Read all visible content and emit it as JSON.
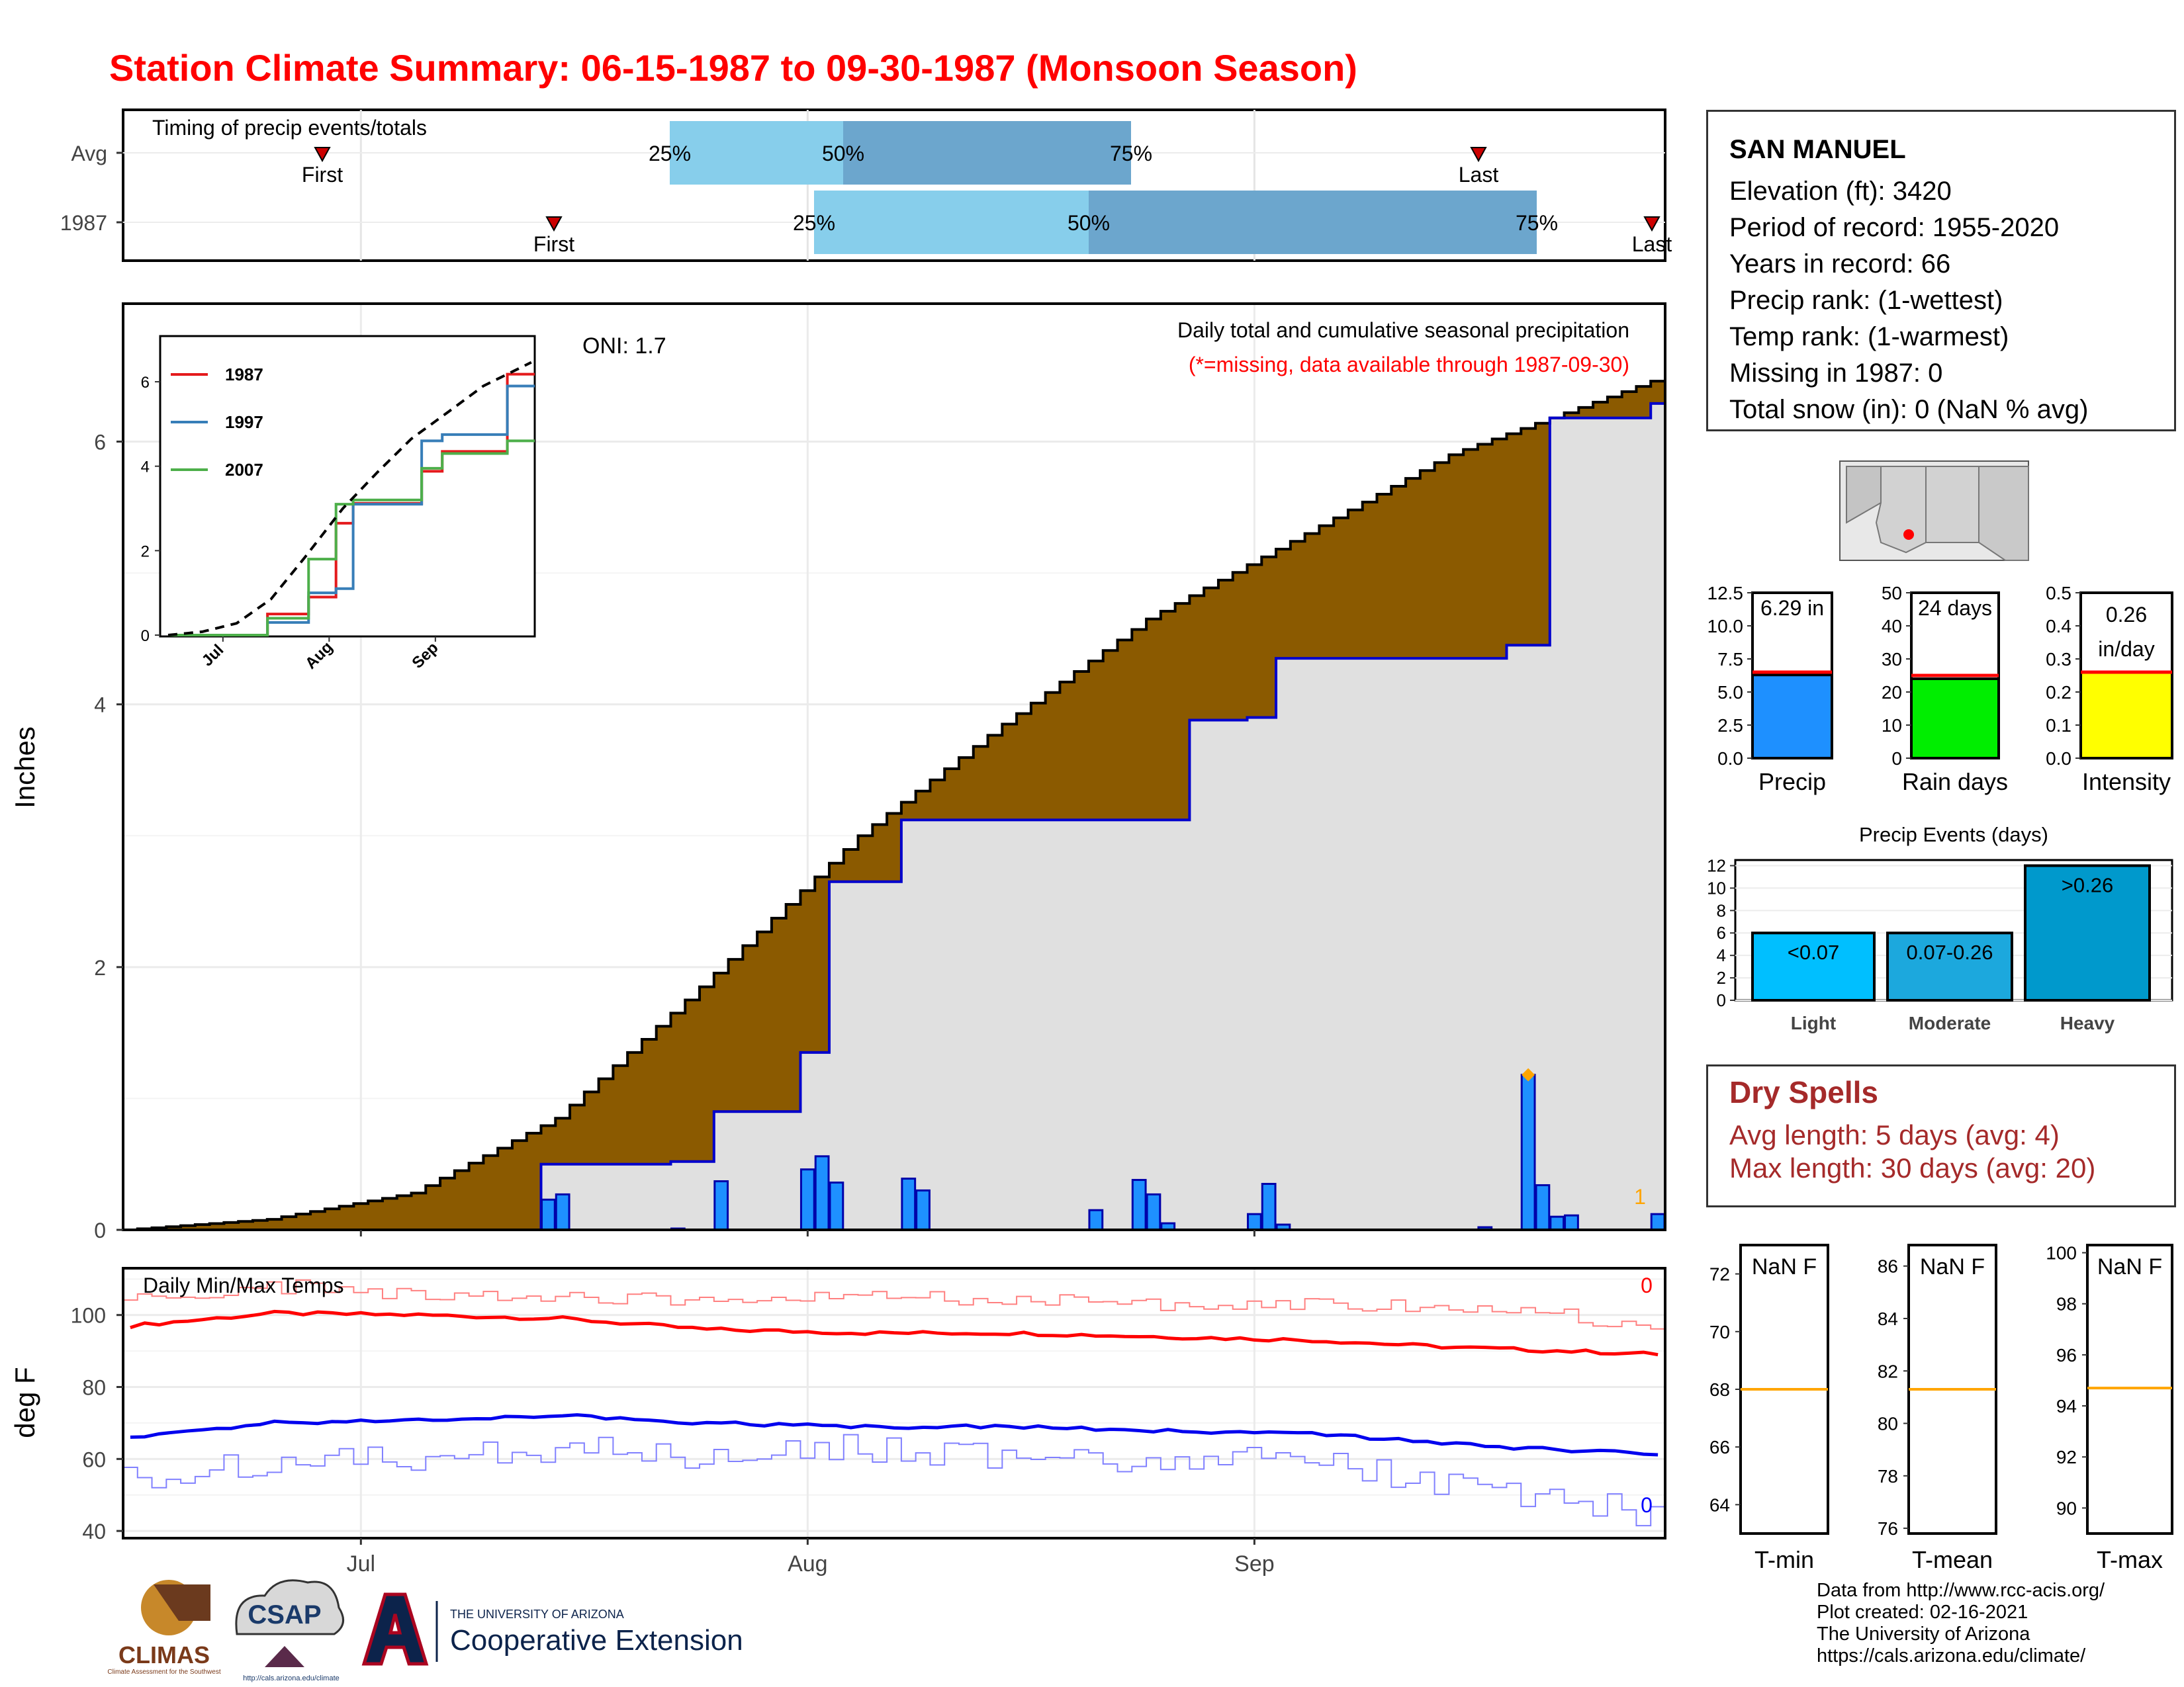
{
  "title": "Station Climate Summary: 06-15-1987 to 09-30-1987 (Monsoon Season)",
  "timing_panel": {
    "title": "Timing of precip events/totals",
    "rows": [
      {
        "label": "Avg",
        "first_label": "First",
        "last_label": "Last",
        "first_x": 1,
        "last_x": 1,
        "p25_label": "25%",
        "p50_label": "50%",
        "p75_label": "75%"
      },
      {
        "label": "1987",
        "first_label": "First",
        "last_label": "Last",
        "first_x": 1,
        "last_x": 1,
        "p25_label": "25%",
        "p50_label": "50%",
        "p75_label": "75%"
      }
    ],
    "colors": {
      "light": "#87ceeb",
      "dark": "#6ca6cd",
      "marker": "#cc0000"
    }
  },
  "main_panel": {
    "ylabel": "Inches",
    "oni_text": "ONI: 1.7",
    "legend_title": "Daily total and cumulative seasonal precipitation",
    "missing_note": "(*=missing, data available through 1987-09-30)",
    "yticks": [
      "0",
      "2",
      "4",
      "6"
    ],
    "xticks": [
      "Jul",
      "Aug",
      "Sep"
    ],
    "end_count": "1",
    "colors": {
      "avg_fill": "#8b5a00",
      "obs_fill": "#e0e0e0",
      "obs_line": "#0000cc",
      "bar": "#1e90ff",
      "bar_border": "#0000aa",
      "marker": "#ffa500"
    }
  },
  "inset": {
    "legend": [
      "1987",
      "1997",
      "2007"
    ],
    "colors": [
      "#e41a1c",
      "#377eb8",
      "#4daf4a"
    ],
    "yticks": [
      "0",
      "2",
      "4",
      "6"
    ],
    "xticks": [
      "Jul",
      "Aug",
      "Sep"
    ]
  },
  "temp_panel": {
    "ylabel": "deg F",
    "title": "Daily Min/Max Temps",
    "yticks": [
      "40",
      "60",
      "80",
      "100"
    ],
    "max_count": "0",
    "min_count": "0",
    "colors": {
      "max": "#ff0000",
      "min": "#0000ff"
    }
  },
  "station": {
    "name": "SAN MANUEL",
    "lines": [
      "Elevation (ft): 3420",
      "Period of record: 1955-2020",
      "Years in record: 66",
      "Precip rank:  (1-wettest)",
      "Temp rank:  (1-warmest)",
      "Missing in 1987: 0",
      "Total snow (in): 0 (NaN % avg)"
    ]
  },
  "summary_bars": [
    {
      "label": "Precip",
      "value_text": "6.29 in",
      "value": 6.29,
      "avg": 6.5,
      "ymax": 12.5,
      "yticks": [
        "0.0",
        "2.5",
        "5.0",
        "7.5",
        "10.0",
        "12.5"
      ],
      "color": "#1e90ff"
    },
    {
      "label": "Rain days",
      "value_text": "24 days",
      "value": 24,
      "avg": 25,
      "ymax": 50,
      "yticks": [
        "0",
        "10",
        "20",
        "30",
        "40",
        "50"
      ],
      "color": "#00ee00"
    },
    {
      "label": "Intensity",
      "value_text": "0.26",
      "value_text2": "in/day",
      "value": 0.26,
      "avg": 0.26,
      "ymax": 0.5,
      "yticks": [
        "0.0",
        "0.1",
        "0.2",
        "0.3",
        "0.4",
        "0.5"
      ],
      "color": "#ffff00"
    }
  ],
  "precip_events": {
    "title": "Precip Events (days)",
    "yticks": [
      "0",
      "2",
      "4",
      "6",
      "8",
      "10",
      "12"
    ],
    "bars": [
      {
        "label": "Light",
        "text": "<0.07",
        "value": 6,
        "color": "#00bfff"
      },
      {
        "label": "Moderate",
        "text": "0.07-0.26",
        "value": 6,
        "color": "#1ca8dd"
      },
      {
        "label": "Heavy",
        "text": ">0.26",
        "value": 12,
        "color": "#0099cc"
      }
    ]
  },
  "dry_spells": {
    "title": "Dry Spells",
    "avg_line": "Avg length: 5 days (avg: 4)",
    "max_line": "Max length: 30 days (avg: 20)"
  },
  "temp_summaries": [
    {
      "label": "T-min",
      "text": "NaN F",
      "yticks": [
        "64",
        "66",
        "68",
        "70",
        "72"
      ],
      "ymin": 63,
      "ymax": 73,
      "ref": 68
    },
    {
      "label": "T-mean",
      "text": "NaN F",
      "yticks": [
        "76",
        "78",
        "80",
        "82",
        "84",
        "86"
      ],
      "ymin": 75.8,
      "ymax": 86.8,
      "ref": 81.3
    },
    {
      "label": "T-max",
      "text": "NaN F",
      "yticks": [
        "90",
        "92",
        "94",
        "96",
        "98",
        "100"
      ],
      "ymin": 89,
      "ymax": 100.3,
      "ref": 94.7
    }
  ],
  "credits": [
    "Data from http://www.rcc-acis.org/",
    "Plot created: 02-16-2021",
    "The University of Arizona",
    "https://cals.arizona.edu/climate/"
  ],
  "logos": {
    "climas": "CLIMAS",
    "climas_sub": "Climate Assessment for the Southwest",
    "csap": "CSAP",
    "csap_url": "http://cals.arizona.edu/climate",
    "ua_top": "THE UNIVERSITY OF ARIZONA",
    "ua_bottom": "Cooperative Extension"
  },
  "chart_data": [
    {
      "type": "area",
      "title": "Daily total and cumulative seasonal precipitation",
      "ylabel": "Inches",
      "ylim": [
        0,
        7.05
      ],
      "x_range": [
        "1987-06-15",
        "1987-09-30"
      ],
      "xticks": [
        "Jul",
        "Aug",
        "Sep"
      ],
      "series": [
        {
          "name": "Avg cumulative",
          "x": [
            "1987-06-15",
            "1987-06-25",
            "1987-07-05",
            "1987-07-15",
            "1987-07-25",
            "1987-08-05",
            "1987-08-15",
            "1987-08-25",
            "1987-09-05",
            "1987-09-15",
            "1987-09-30"
          ],
          "values": [
            0.0,
            0.08,
            0.28,
            0.85,
            1.85,
            3.0,
            3.85,
            4.65,
            5.3,
            5.9,
            6.5
          ]
        },
        {
          "name": "1987 cumulative",
          "x": [
            "1987-06-15",
            "1987-07-14",
            "1987-07-23",
            "1987-07-26",
            "1987-08-01",
            "1987-08-03",
            "1987-08-08",
            "1987-08-24",
            "1987-08-28",
            "1987-09-01",
            "1987-09-03",
            "1987-09-19",
            "1987-09-22",
            "1987-09-29"
          ],
          "values": [
            0.0,
            0.5,
            0.52,
            0.9,
            1.35,
            2.65,
            3.12,
            3.12,
            3.88,
            3.9,
            4.35,
            4.45,
            6.18,
            6.29
          ]
        },
        {
          "name": "1987 daily",
          "x": [
            "1987-07-14",
            "1987-07-15",
            "1987-07-23",
            "1987-07-26",
            "1987-08-01",
            "1987-08-02",
            "1987-08-03",
            "1987-08-08",
            "1987-08-09",
            "1987-08-21",
            "1987-08-24",
            "1987-08-25",
            "1987-08-26",
            "1987-09-01",
            "1987-09-02",
            "1987-09-03",
            "1987-09-17",
            "1987-09-20",
            "1987-09-21",
            "1987-09-22",
            "1987-09-23",
            "1987-09-29"
          ],
          "values": [
            0.23,
            0.27,
            0.01,
            0.37,
            0.46,
            0.56,
            0.36,
            0.39,
            0.3,
            0.15,
            0.38,
            0.27,
            0.05,
            0.12,
            0.35,
            0.04,
            0.02,
            1.18,
            0.34,
            0.1,
            0.11,
            0.12
          ]
        }
      ]
    },
    {
      "type": "line",
      "title": "Daily Min/Max Temps",
      "ylabel": "deg F",
      "ylim": [
        38,
        113
      ],
      "x_range": [
        "1987-06-15",
        "1987-09-30"
      ],
      "series": [
        {
          "name": "Avg max",
          "x": [
            "1987-06-15",
            "1987-06-25",
            "1987-07-05",
            "1987-07-15",
            "1987-07-25",
            "1987-08-05",
            "1987-08-15",
            "1987-08-25",
            "1987-09-05",
            "1987-09-15",
            "1987-09-30"
          ],
          "values": [
            97,
            100.5,
            100,
            99,
            96,
            95,
            95,
            94,
            93,
            91,
            89
          ]
        },
        {
          "name": "Avg min",
          "x": [
            "1987-06-15",
            "1987-06-25",
            "1987-07-05",
            "1987-07-15",
            "1987-07-25",
            "1987-08-05",
            "1987-08-15",
            "1987-08-25",
            "1987-09-05",
            "1987-09-15",
            "1987-09-30"
          ],
          "values": [
            66,
            70,
            71,
            72,
            70,
            69,
            69,
            68,
            67,
            64,
            61
          ]
        },
        {
          "name": "Daily max (obs)",
          "x": [
            "1987-06-15",
            "1987-06-25",
            "1987-07-05",
            "1987-07-15",
            "1987-07-25",
            "1987-08-05",
            "1987-08-15",
            "1987-08-25",
            "1987-09-05",
            "1987-09-15",
            "1987-09-25",
            "1987-09-30"
          ],
          "values": [
            104,
            108,
            106,
            105,
            104,
            105,
            104,
            103,
            103,
            102,
            99,
            96
          ]
        },
        {
          "name": "Daily min (obs)",
          "x": [
            "1987-06-15",
            "1987-06-25",
            "1987-07-05",
            "1987-07-15",
            "1987-07-25",
            "1987-08-05",
            "1987-08-15",
            "1987-08-25",
            "1987-09-05",
            "1987-09-15",
            "1987-09-25",
            "1987-09-30"
          ],
          "values": [
            55,
            59,
            60,
            63,
            61,
            63,
            61,
            60,
            60,
            52,
            48,
            42
          ]
        }
      ]
    },
    {
      "type": "line",
      "title": "",
      "ylim": [
        0,
        6.8
      ],
      "xticks": [
        "Jul",
        "Aug",
        "Sep"
      ],
      "series": [
        {
          "name": "1987",
          "x": [
            "1987-06-15",
            "1987-07-14",
            "1987-07-26",
            "1987-08-03",
            "1987-08-08",
            "1987-08-28",
            "1987-09-03",
            "1987-09-22",
            "1987-09-30"
          ],
          "values": [
            0,
            0.5,
            0.9,
            2.65,
            3.12,
            3.88,
            4.35,
            6.18,
            6.29
          ]
        },
        {
          "name": "1997",
          "x": [
            "1987-06-15",
            "1987-07-14",
            "1987-07-26",
            "1987-08-03",
            "1987-08-08",
            "1987-08-28",
            "1987-09-03",
            "1987-09-22",
            "1987-09-30"
          ],
          "values": [
            0,
            0.3,
            1.0,
            1.1,
            3.1,
            4.6,
            4.75,
            5.9,
            6.5
          ]
        },
        {
          "name": "2007",
          "x": [
            "1987-06-15",
            "1987-07-14",
            "1987-07-26",
            "1987-08-03",
            "1987-08-08",
            "1987-08-28",
            "1987-09-03",
            "1987-09-22",
            "1987-09-30"
          ],
          "values": [
            0,
            0.4,
            1.8,
            3.1,
            3.2,
            3.95,
            4.3,
            4.6,
            4.9
          ]
        },
        {
          "name": "Avg",
          "x": [
            "1987-06-15",
            "1987-06-25",
            "1987-07-05",
            "1987-07-15",
            "1987-07-25",
            "1987-08-05",
            "1987-08-15",
            "1987-08-25",
            "1987-09-05",
            "1987-09-15",
            "1987-09-30"
          ],
          "values": [
            0.0,
            0.08,
            0.28,
            0.85,
            1.85,
            3.0,
            3.85,
            4.65,
            5.3,
            5.9,
            6.5
          ]
        }
      ]
    },
    {
      "type": "bar",
      "title": "Precip Events (days)",
      "categories": [
        "Light",
        "Moderate",
        "Heavy"
      ],
      "values": [
        6,
        6,
        12
      ],
      "ylim": [
        0,
        12.5
      ]
    }
  ]
}
